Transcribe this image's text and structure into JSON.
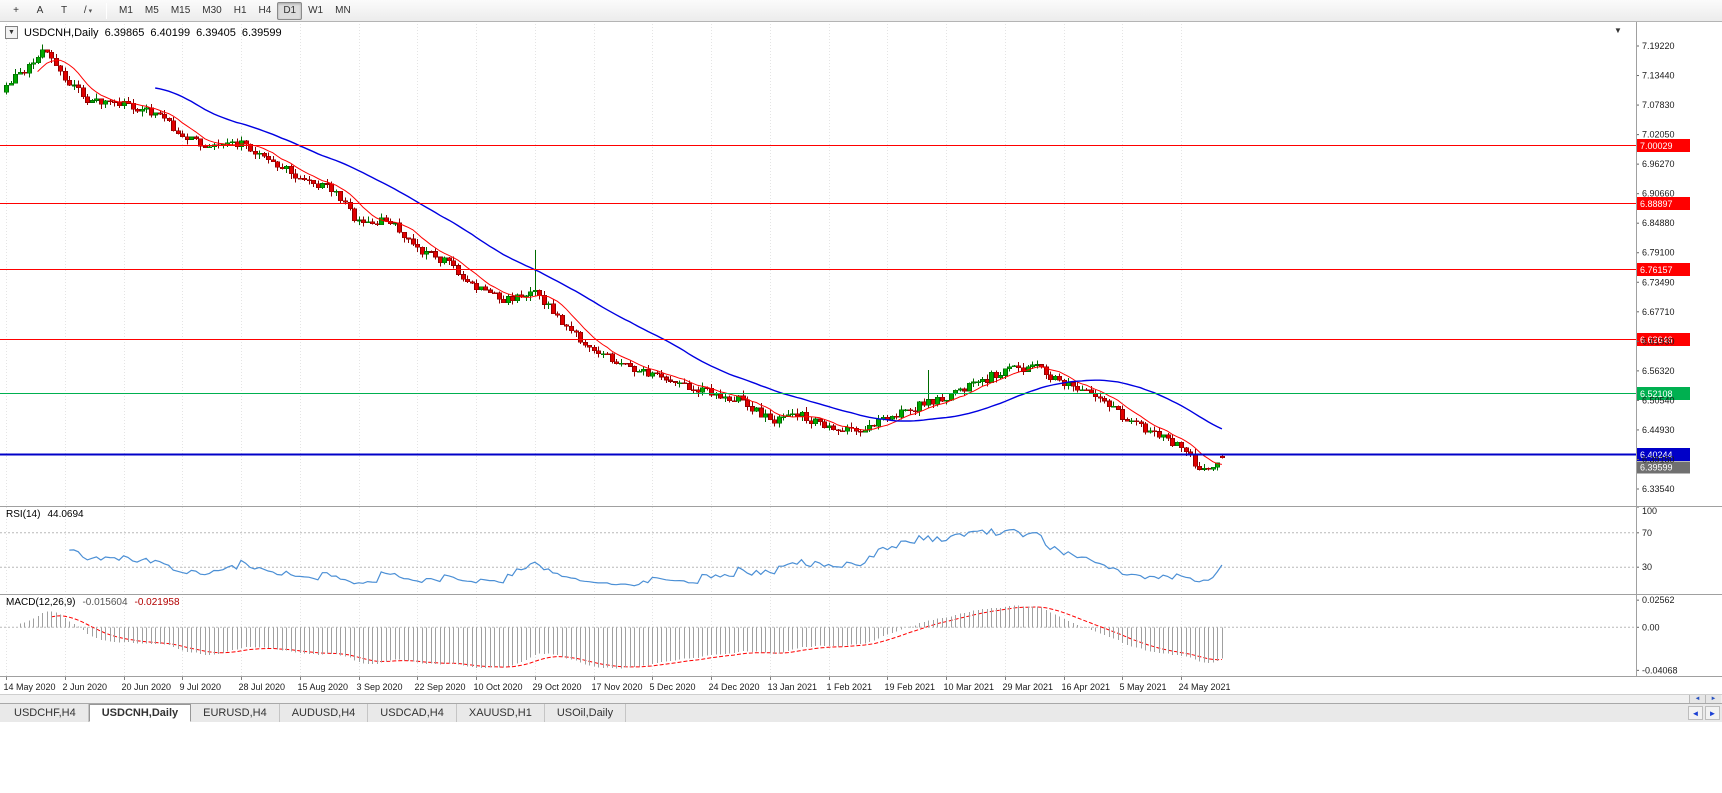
{
  "toolbar": {
    "icons": [
      {
        "name": "crosshair-icon",
        "glyph": "+"
      },
      {
        "name": "text-label-tool-icon",
        "glyph": "A"
      },
      {
        "name": "shapes-tool-icon",
        "glyph": "T"
      },
      {
        "name": "trendline-tool-icon",
        "glyph": "/",
        "dropdown": true
      }
    ],
    "timeframes": [
      {
        "label": "M1"
      },
      {
        "label": "M5"
      },
      {
        "label": "M15"
      },
      {
        "label": "M30"
      },
      {
        "label": "H1"
      },
      {
        "label": "H4"
      },
      {
        "label": "D1",
        "active": true
      },
      {
        "label": "W1"
      },
      {
        "label": "MN"
      }
    ]
  },
  "chart": {
    "symbol": "USDCNH,Daily",
    "ohlc": {
      "open": "6.39865",
      "high": "6.40199",
      "low": "6.39405",
      "close": "6.39599"
    }
  },
  "chart_data": {
    "type": "candlestick",
    "title": "USDCNH Daily",
    "candle_count": 270,
    "price_axis_ticks": [
      "7.19220",
      "7.13440",
      "7.07830",
      "7.02050",
      "6.96270",
      "6.90660",
      "6.84880",
      "6.79100",
      "6.73490",
      "6.67710",
      "6.61930",
      "6.56320",
      "6.50540",
      "6.44930",
      "6.39150",
      "6.33540"
    ],
    "x_labels": [
      {
        "i": 0,
        "label": "14 May 2020"
      },
      {
        "i": 13,
        "label": "2 Jun 2020"
      },
      {
        "i": 26,
        "label": "20 Jun 2020"
      },
      {
        "i": 39,
        "label": "9 Jul 2020"
      },
      {
        "i": 52,
        "label": "28 Jul 2020"
      },
      {
        "i": 65,
        "label": "15 Aug 2020"
      },
      {
        "i": 78,
        "label": "3 Sep 2020"
      },
      {
        "i": 91,
        "label": "22 Sep 2020"
      },
      {
        "i": 104,
        "label": "10 Oct 2020"
      },
      {
        "i": 117,
        "label": "29 Oct 2020"
      },
      {
        "i": 130,
        "label": "17 Nov 2020"
      },
      {
        "i": 143,
        "label": "5 Dec 2020"
      },
      {
        "i": 156,
        "label": "24 Dec 2020"
      },
      {
        "i": 169,
        "label": "13 Jan 2021"
      },
      {
        "i": 182,
        "label": "1 Feb 2021"
      },
      {
        "i": 195,
        "label": "19 Feb 2021"
      },
      {
        "i": 208,
        "label": "10 Mar 2021"
      },
      {
        "i": 221,
        "label": "29 Mar 2021"
      },
      {
        "i": 234,
        "label": "16 Apr 2021"
      },
      {
        "i": 247,
        "label": "5 May 2021"
      },
      {
        "i": 260,
        "label": "24 May 2021"
      }
    ],
    "trend_anchors": [
      {
        "i": 0,
        "c": 7.115
      },
      {
        "i": 5,
        "c": 7.155
      },
      {
        "i": 8,
        "c": 7.188
      },
      {
        "i": 11,
        "c": 7.16
      },
      {
        "i": 13,
        "c": 7.128
      },
      {
        "i": 18,
        "c": 7.088
      },
      {
        "i": 26,
        "c": 7.078
      },
      {
        "i": 33,
        "c": 7.062
      },
      {
        "i": 39,
        "c": 7.018
      },
      {
        "i": 45,
        "c": 6.995
      },
      {
        "i": 52,
        "c": 7.003
      },
      {
        "i": 58,
        "c": 6.975
      },
      {
        "i": 65,
        "c": 6.938
      },
      {
        "i": 72,
        "c": 6.916
      },
      {
        "i": 78,
        "c": 6.85
      },
      {
        "i": 85,
        "c": 6.856
      },
      {
        "i": 91,
        "c": 6.798
      },
      {
        "i": 98,
        "c": 6.772
      },
      {
        "i": 104,
        "c": 6.722
      },
      {
        "i": 110,
        "c": 6.702
      },
      {
        "i": 117,
        "c": 6.712
      },
      {
        "i": 124,
        "c": 6.652
      },
      {
        "i": 130,
        "c": 6.602
      },
      {
        "i": 137,
        "c": 6.576
      },
      {
        "i": 143,
        "c": 6.556
      },
      {
        "i": 150,
        "c": 6.532
      },
      {
        "i": 156,
        "c": 6.521
      },
      {
        "i": 163,
        "c": 6.506
      },
      {
        "i": 169,
        "c": 6.466
      },
      {
        "i": 176,
        "c": 6.476
      },
      {
        "i": 182,
        "c": 6.456
      },
      {
        "i": 189,
        "c": 6.447
      },
      {
        "i": 195,
        "c": 6.476
      },
      {
        "i": 204,
        "c": 6.502
      },
      {
        "i": 208,
        "c": 6.512
      },
      {
        "i": 215,
        "c": 6.542
      },
      {
        "i": 221,
        "c": 6.564
      },
      {
        "i": 228,
        "c": 6.572
      },
      {
        "i": 234,
        "c": 6.536
      },
      {
        "i": 241,
        "c": 6.52
      },
      {
        "i": 247,
        "c": 6.476
      },
      {
        "i": 254,
        "c": 6.441
      },
      {
        "i": 260,
        "c": 6.415
      },
      {
        "i": 265,
        "c": 6.368
      },
      {
        "i": 269,
        "c": 6.396
      }
    ],
    "spikes": [
      {
        "i": 117,
        "high_add": 0.075
      },
      {
        "i": 204,
        "high_add": 0.05
      }
    ],
    "hlines": [
      {
        "price": 7.00029,
        "tag": "7.00029",
        "color": "#ff0000",
        "width": 1
      },
      {
        "price": 6.88897,
        "tag": "6.88897",
        "color": "#ff0000",
        "width": 1
      },
      {
        "price": 6.76157,
        "tag": "6.76157",
        "color": "#ff0000",
        "width": 1
      },
      {
        "price": 6.62646,
        "tag": "6.62646",
        "color": "#00b050",
        "width": 1
      },
      {
        "price": 6.52108,
        "tag": "6.52108",
        "color": "#00b050",
        "width": 1
      },
      {
        "price": 6.40244,
        "tag": "6.40244",
        "color": "#0000c8",
        "width": 2
      }
    ],
    "hline_color_fix": [
      {
        "tag": "6.62646",
        "color": "#ff0000"
      }
    ],
    "current_price_tag": {
      "text": "6.39599",
      "color": "#707070"
    },
    "moving_averages": [
      {
        "period": 8,
        "color": "#ff0000"
      },
      {
        "period": 34,
        "color": "#0000e1"
      }
    ]
  },
  "rsi_panel": {
    "name": "RSI(14)",
    "value": "44.0694",
    "scale_ticks": [
      "100",
      "70",
      "30"
    ],
    "levels": [
      70,
      30
    ]
  },
  "macd_panel": {
    "name": "MACD(12,26,9)",
    "macd_value": "-0.015604",
    "signal_value": "-0.021958",
    "scale_ticks": [
      "0.02562",
      "0.00",
      "-0.04068"
    ],
    "range": [
      -0.046,
      0.0305
    ]
  },
  "tabs": [
    {
      "label": "USDCHF,H4"
    },
    {
      "label": "USDCNH,Daily",
      "active": true
    },
    {
      "label": "EURUSD,H4"
    },
    {
      "label": "AUDUSD,H4"
    },
    {
      "label": "USDCAD,H4"
    },
    {
      "label": "XAUUSD,H1"
    },
    {
      "label": "USOil,Daily"
    }
  ],
  "misc": {
    "symbol_dropdown_icon": "▼",
    "chart_menu_icon": "▼",
    "scroll_left": "◄",
    "scroll_right": "►"
  },
  "colors": {
    "candle_up_fill": "#00a800",
    "candle_up_stroke": "#006b00",
    "candle_down_fill": "#e00000",
    "candle_down_stroke": "#8f0000",
    "rsi_line": "#4b8fd5",
    "macd_hist": "#a0a0a0",
    "macd_signal": "#ff0000",
    "grid": "#e4e4e4",
    "axis_text": "#1a1a1a",
    "panel_border": "#a0a0a0"
  }
}
